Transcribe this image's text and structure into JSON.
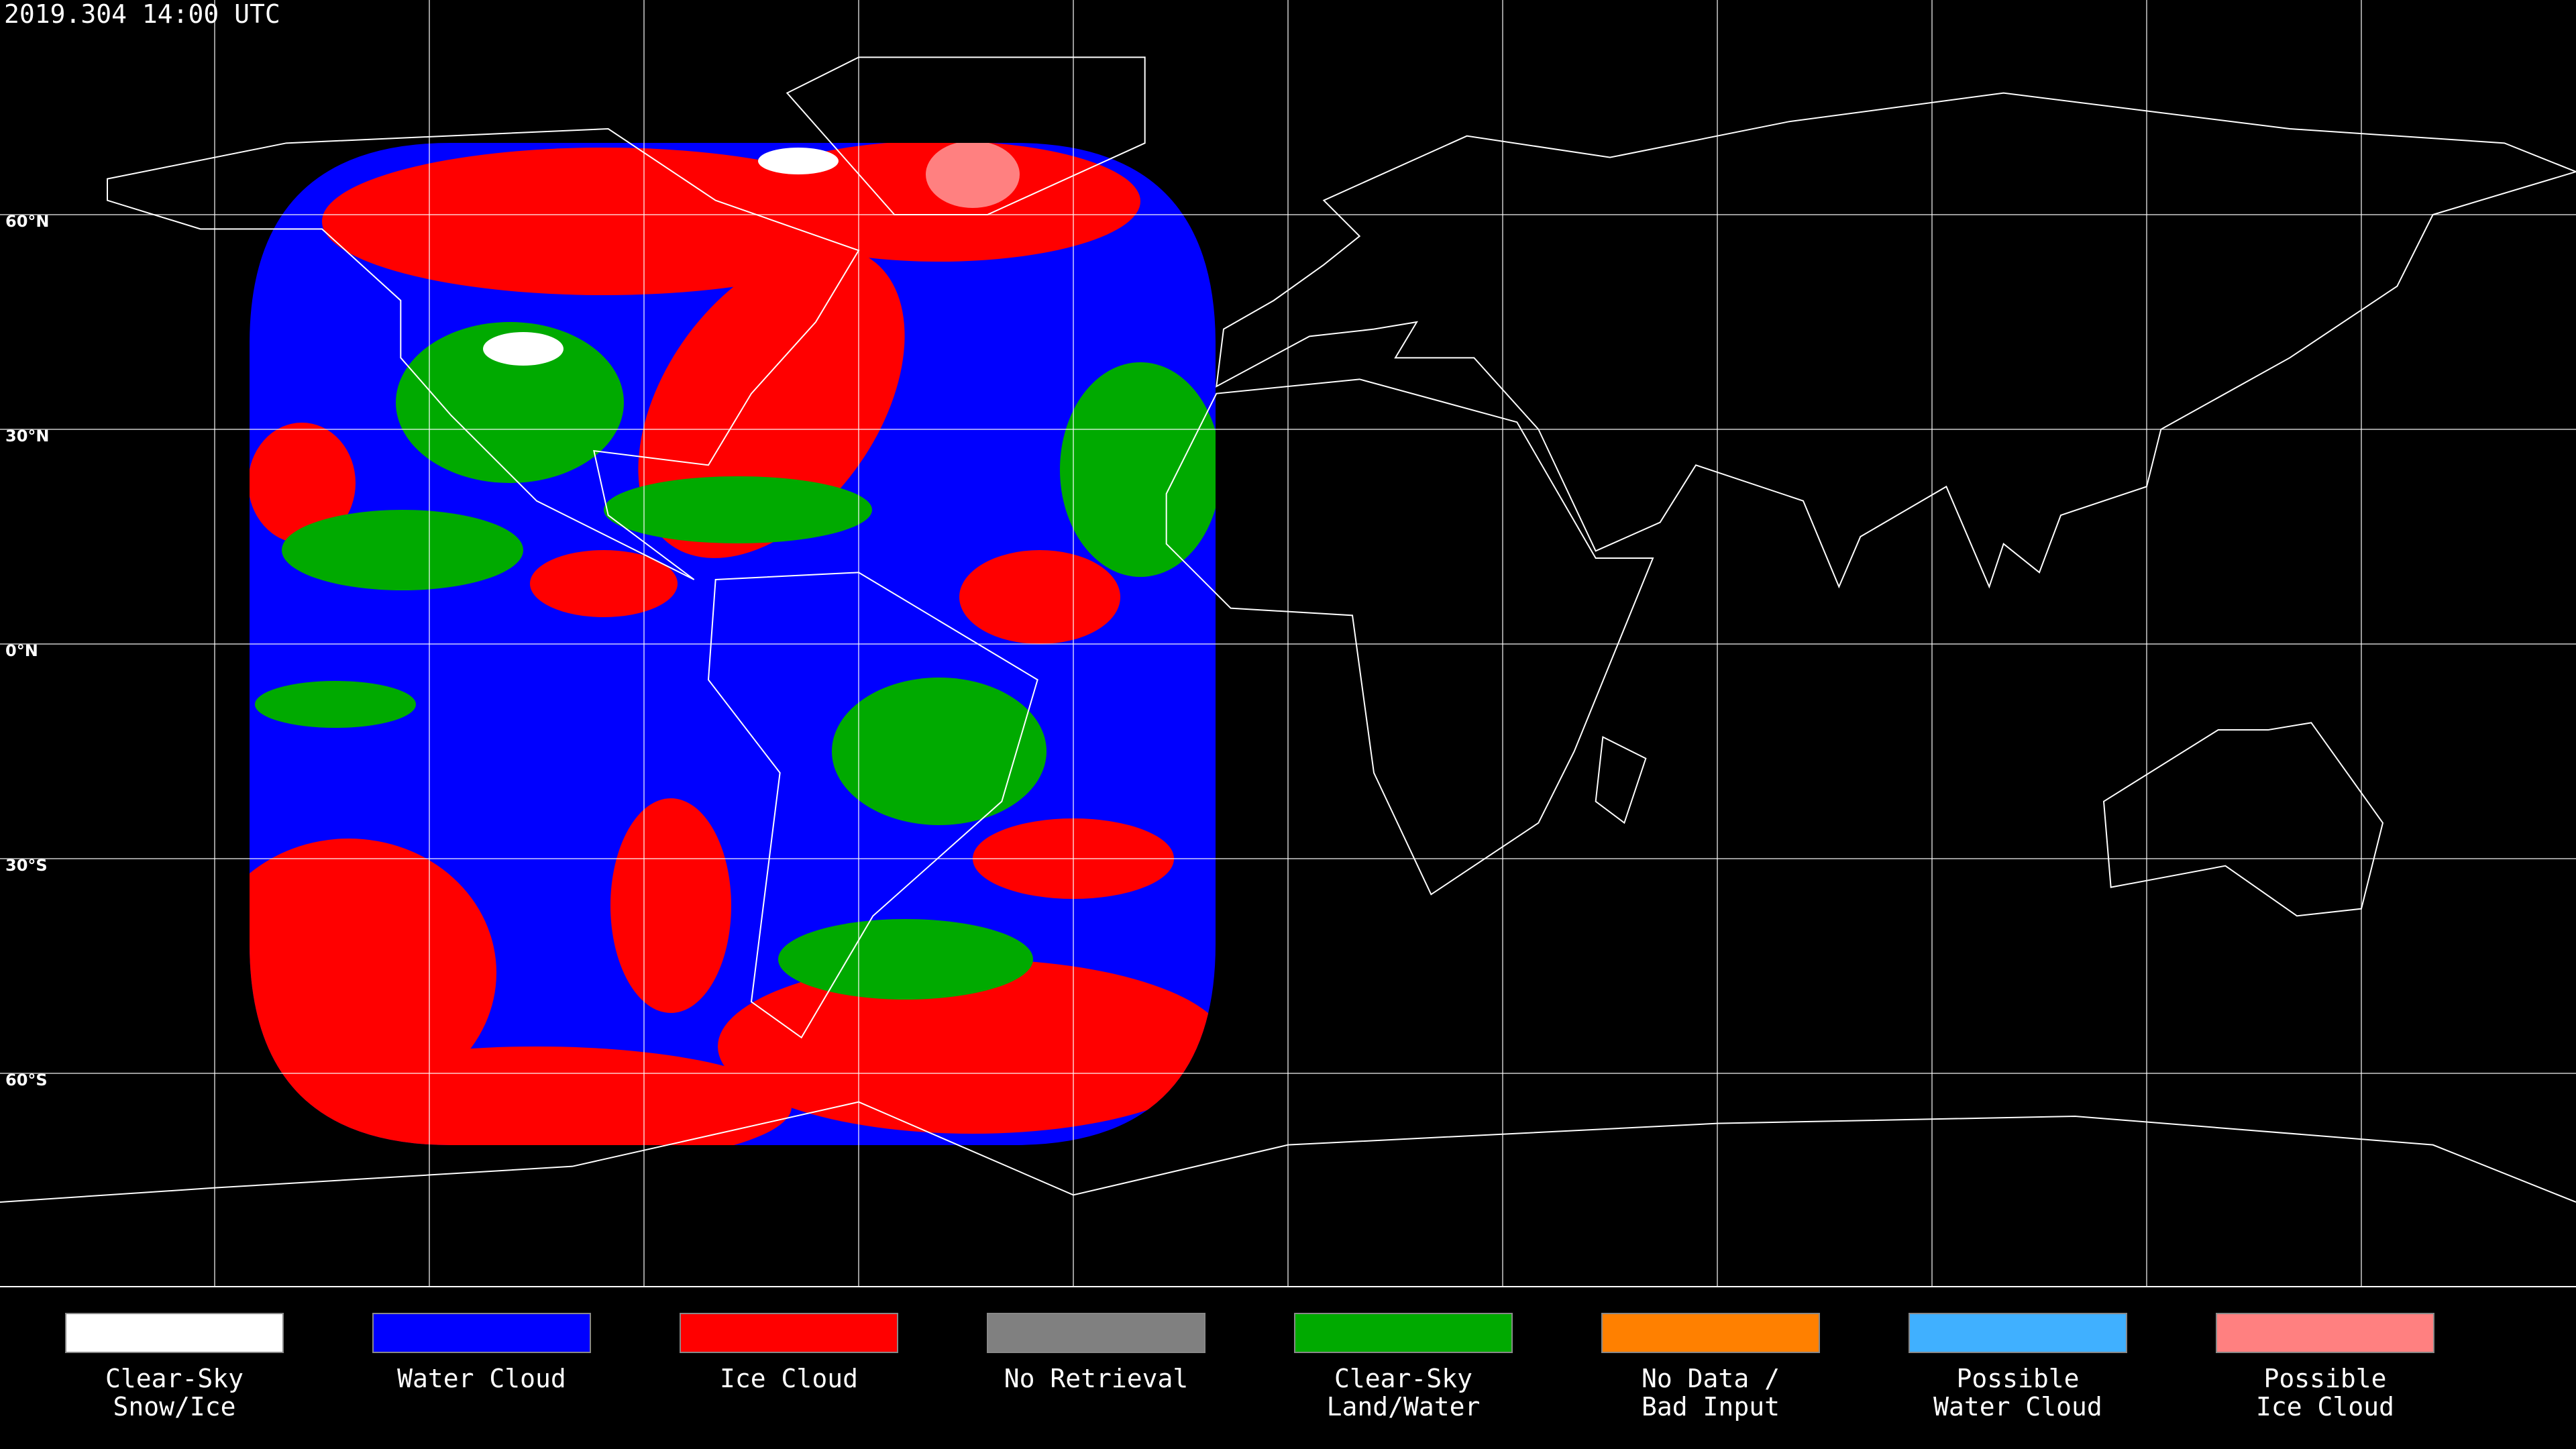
{
  "header": {
    "title": "2019.304 14:00 UTC"
  },
  "map": {
    "latitude_labels": [
      "60°N",
      "30°N",
      "0°N",
      "30°S",
      "60°S"
    ]
  },
  "legend": {
    "items": [
      {
        "label": [
          "Clear-Sky",
          "Snow/Ice"
        ],
        "color": "#ffffff"
      },
      {
        "label": [
          "Water Cloud"
        ],
        "color": "#0000ff"
      },
      {
        "label": [
          "Ice Cloud"
        ],
        "color": "#ff0000"
      },
      {
        "label": [
          "No Retrieval"
        ],
        "color": "#808080"
      },
      {
        "label": [
          "Clear-Sky",
          "Land/Water"
        ],
        "color": "#00aa00"
      },
      {
        "label": [
          "No Data /",
          "Bad Input"
        ],
        "color": "#ff8000"
      },
      {
        "label": [
          "Possible",
          "Water Cloud"
        ],
        "color": "#40b0ff"
      },
      {
        "label": [
          "Possible",
          "Ice Cloud"
        ],
        "color": "#ff8080"
      }
    ]
  }
}
